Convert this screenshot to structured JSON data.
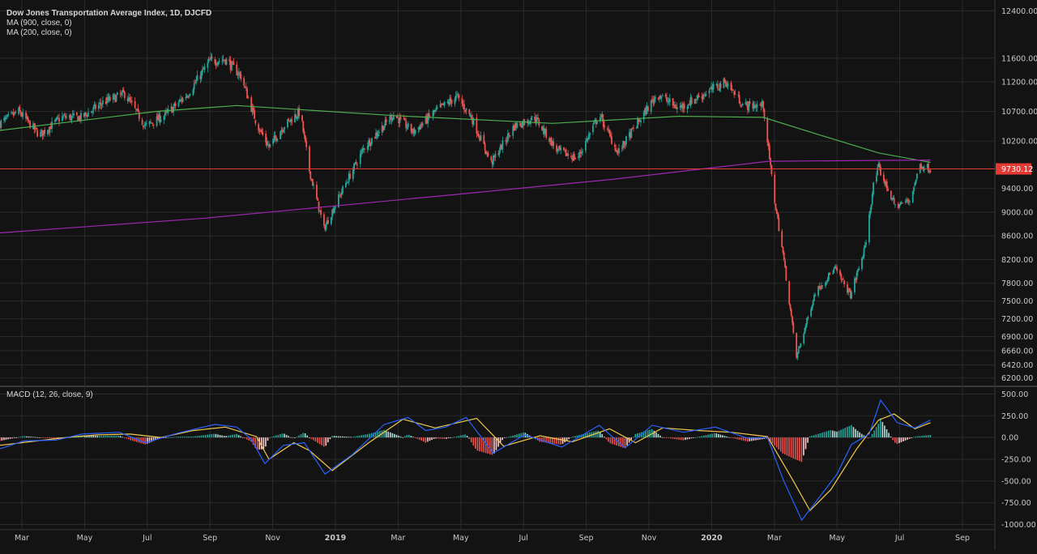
{
  "chart_data": [
    {
      "type": "candlestick",
      "title": "Dow Jones Transportation Average Index, 1D, DJCFD",
      "indicators": [
        "MA (900, close, 0)",
        "MA (200, close, 0)"
      ],
      "price_label": "9730.12",
      "last_close": 9730.12,
      "ylim": [
        6100,
        12500
      ],
      "y_ticks": [
        "12400.00",
        "11600.00",
        "11200.00",
        "10700.00",
        "10200.00",
        "9730.12",
        "9400.00",
        "9000.00",
        "8600.00",
        "8200.00",
        "7800.00",
        "7500.00",
        "7200.00",
        "6900.00",
        "6660.00",
        "6420.00",
        "6200.00"
      ],
      "x_ticks": [
        "Mar",
        "May",
        "Jul",
        "Sep",
        "Nov",
        "2019",
        "Mar",
        "May",
        "Jul",
        "Sep",
        "Nov",
        "2020",
        "Mar",
        "May",
        "Jul",
        "Sep"
      ],
      "x_range_dates": [
        "2018-02-15",
        "2020-09-30"
      ],
      "price_path": [
        [
          "2018-02-15",
          10500
        ],
        [
          "2018-03-05",
          10700
        ],
        [
          "2018-03-25",
          10300
        ],
        [
          "2018-04-15",
          10600
        ],
        [
          "2018-05-05",
          10600
        ],
        [
          "2018-05-25",
          10850
        ],
        [
          "2018-06-15",
          11000
        ],
        [
          "2018-07-05",
          10450
        ],
        [
          "2018-07-25",
          10650
        ],
        [
          "2018-08-15",
          11000
        ],
        [
          "2018-09-05",
          11550
        ],
        [
          "2018-09-20",
          11580
        ],
        [
          "2018-10-05",
          11300
        ],
        [
          "2018-10-20",
          10500
        ],
        [
          "2018-11-01",
          10100
        ],
        [
          "2018-11-15",
          10450
        ],
        [
          "2018-12-01",
          10700
        ],
        [
          "2018-12-10",
          9700
        ],
        [
          "2018-12-24",
          8720
        ],
        [
          "2019-01-10",
          9350
        ],
        [
          "2019-02-01",
          10100
        ],
        [
          "2019-03-01",
          10650
        ],
        [
          "2019-03-20",
          10350
        ],
        [
          "2019-04-10",
          10700
        ],
        [
          "2019-05-01",
          10950
        ],
        [
          "2019-05-15",
          10600
        ],
        [
          "2019-06-03",
          9830
        ],
        [
          "2019-06-25",
          10450
        ],
        [
          "2019-07-15",
          10600
        ],
        [
          "2019-08-05",
          10050
        ],
        [
          "2019-08-25",
          9900
        ],
        [
          "2019-09-15",
          10650
        ],
        [
          "2019-10-03",
          10000
        ],
        [
          "2019-10-20",
          10450
        ],
        [
          "2019-11-10",
          11000
        ],
        [
          "2019-11-30",
          10750
        ],
        [
          "2019-12-20",
          10950
        ],
        [
          "2020-01-15",
          11200
        ],
        [
          "2020-02-01",
          10800
        ],
        [
          "2020-02-20",
          10800
        ],
        [
          "2020-03-01",
          9300
        ],
        [
          "2020-03-10",
          8300
        ],
        [
          "2020-03-23",
          6550
        ],
        [
          "2020-04-10",
          7650
        ],
        [
          "2020-04-29",
          8050
        ],
        [
          "2020-05-14",
          7600
        ],
        [
          "2020-05-28",
          8400
        ],
        [
          "2020-06-05",
          9450
        ],
        [
          "2020-06-10",
          9750
        ],
        [
          "2020-06-26",
          9100
        ],
        [
          "2020-07-10",
          9200
        ],
        [
          "2020-07-20",
          9800
        ],
        [
          "2020-07-30",
          9730
        ]
      ],
      "ma_900_path": [
        [
          "2018-02-15",
          10380
        ],
        [
          "2018-07-15",
          10700
        ],
        [
          "2018-10-01",
          10800
        ],
        [
          "2019-03-01",
          10630
        ],
        [
          "2019-08-01",
          10500
        ],
        [
          "2019-12-01",
          10620
        ],
        [
          "2020-02-20",
          10600
        ],
        [
          "2020-04-15",
          10300
        ],
        [
          "2020-06-10",
          10000
        ],
        [
          "2020-07-30",
          9840
        ]
      ],
      "ma_200_path": [
        [
          "2018-02-15",
          8650
        ],
        [
          "2018-09-01",
          8900
        ],
        [
          "2019-05-01",
          9300
        ],
        [
          "2019-10-01",
          9560
        ],
        [
          "2020-02-25",
          9860
        ],
        [
          "2020-07-30",
          9880
        ]
      ]
    },
    {
      "type": "macd",
      "label": "MACD (12, 26, close, 9)",
      "ylim": [
        -1060,
        560
      ],
      "y_ticks": [
        "500.00",
        "250.00",
        "0.00",
        "-250.00",
        "-500.00",
        "-750.00",
        "-1000.00"
      ],
      "macd_path": [
        [
          "2018-02-15",
          -130
        ],
        [
          "2018-03-10",
          -40
        ],
        [
          "2018-04-10",
          -30
        ],
        [
          "2018-05-05",
          40
        ],
        [
          "2018-06-10",
          60
        ],
        [
          "2018-07-05",
          -60
        ],
        [
          "2018-08-05",
          50
        ],
        [
          "2018-09-10",
          150
        ],
        [
          "2018-10-01",
          120
        ],
        [
          "2018-10-15",
          -20
        ],
        [
          "2018-10-28",
          -300
        ],
        [
          "2018-11-15",
          -90
        ],
        [
          "2018-12-05",
          -60
        ],
        [
          "2018-12-25",
          -420
        ],
        [
          "2019-01-20",
          -200
        ],
        [
          "2019-02-20",
          150
        ],
        [
          "2019-03-15",
          230
        ],
        [
          "2019-04-01",
          80
        ],
        [
          "2019-04-20",
          120
        ],
        [
          "2019-05-10",
          230
        ],
        [
          "2019-06-05",
          -180
        ],
        [
          "2019-07-05",
          30
        ],
        [
          "2019-08-10",
          -110
        ],
        [
          "2019-09-15",
          140
        ],
        [
          "2019-10-10",
          -120
        ],
        [
          "2019-11-05",
          140
        ],
        [
          "2019-12-05",
          60
        ],
        [
          "2020-01-05",
          120
        ],
        [
          "2020-02-05",
          -10
        ],
        [
          "2020-02-24",
          0
        ],
        [
          "2020-03-10",
          -480
        ],
        [
          "2020-03-28",
          -950
        ],
        [
          "2020-04-10",
          -750
        ],
        [
          "2020-05-01",
          -420
        ],
        [
          "2020-05-15",
          -80
        ],
        [
          "2020-06-01",
          40
        ],
        [
          "2020-06-12",
          430
        ],
        [
          "2020-06-28",
          170
        ],
        [
          "2020-07-15",
          110
        ],
        [
          "2020-07-30",
          200
        ]
      ],
      "signal_path": [
        [
          "2018-02-15",
          -90
        ],
        [
          "2018-03-15",
          -50
        ],
        [
          "2018-04-20",
          0
        ],
        [
          "2018-05-20",
          30
        ],
        [
          "2018-06-20",
          40
        ],
        [
          "2018-07-20",
          0
        ],
        [
          "2018-08-20",
          80
        ],
        [
          "2018-09-20",
          120
        ],
        [
          "2018-10-20",
          10
        ],
        [
          "2018-11-01",
          -250
        ],
        [
          "2018-11-25",
          -60
        ],
        [
          "2018-12-10",
          -150
        ],
        [
          "2019-01-01",
          -380
        ],
        [
          "2019-02-05",
          -60
        ],
        [
          "2019-03-10",
          210
        ],
        [
          "2019-04-10",
          110
        ],
        [
          "2019-05-20",
          220
        ],
        [
          "2019-06-15",
          -100
        ],
        [
          "2019-07-20",
          20
        ],
        [
          "2019-08-20",
          -50
        ],
        [
          "2019-09-25",
          100
        ],
        [
          "2019-10-20",
          -60
        ],
        [
          "2019-11-15",
          110
        ],
        [
          "2019-12-20",
          80
        ],
        [
          "2020-01-20",
          60
        ],
        [
          "2020-02-24",
          10
        ],
        [
          "2020-03-20",
          -500
        ],
        [
          "2020-04-05",
          -840
        ],
        [
          "2020-04-25",
          -600
        ],
        [
          "2020-05-20",
          -130
        ],
        [
          "2020-06-10",
          200
        ],
        [
          "2020-06-25",
          270
        ],
        [
          "2020-07-15",
          100
        ],
        [
          "2020-07-30",
          170
        ]
      ]
    }
  ],
  "colors": {
    "background": "#131313",
    "grid": "#2b2b2b",
    "up": "#26a69a",
    "down": "#ef5350",
    "ma_900": "#4caf50",
    "ma_200": "#9c27b0",
    "macd": "#2962ff",
    "signal": "#f2c94c",
    "price_label_bg": "#e53935"
  }
}
